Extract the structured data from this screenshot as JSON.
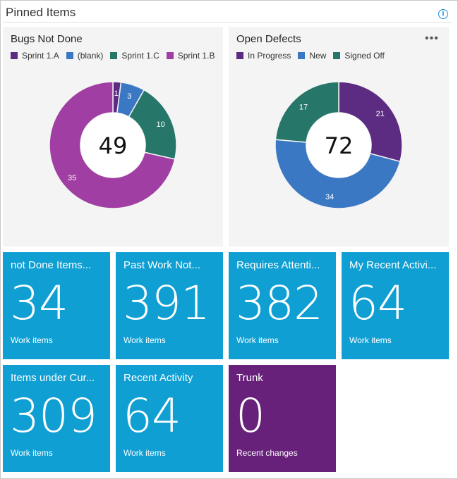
{
  "header": {
    "title": "Pinned Items",
    "info_icon": "info-icon"
  },
  "colors": {
    "tile_blue": "#0f9fd3",
    "tile_purple": "#68217a",
    "card_bg": "#f4f4f4"
  },
  "chart_data": [
    {
      "type": "pie",
      "title": "Bugs Not Done",
      "center_label": "49",
      "legend_placement": "top",
      "categories": [
        "Sprint 1.A",
        "(blank)",
        "Sprint 1.C",
        "Sprint 1.B"
      ],
      "values": [
        1,
        3,
        10,
        35
      ],
      "colors": [
        "#5b2c82",
        "#3b78c4",
        "#26776a",
        "#a03ea3"
      ],
      "slice_labels": [
        "1",
        "3",
        "10",
        "35"
      ]
    },
    {
      "type": "pie",
      "title": "Open Defects",
      "center_label": "72",
      "legend_placement": "top",
      "categories": [
        "In Progress",
        "New",
        "Signed Off"
      ],
      "values": [
        21,
        34,
        17
      ],
      "colors": [
        "#5b2c82",
        "#3b78c4",
        "#26776a"
      ],
      "slice_labels": [
        "21",
        "34",
        "17"
      ],
      "menu_icon": "more-horizontal-icon"
    }
  ],
  "tiles": [
    {
      "title": "not Done Items...",
      "value": "34",
      "subtitle": "Work items",
      "color": "#0f9fd3"
    },
    {
      "title": "Past Work Not...",
      "value": "391",
      "subtitle": "Work items",
      "color": "#0f9fd3"
    },
    {
      "title": "Requires Attenti...",
      "value": "382",
      "subtitle": "Work items",
      "color": "#0f9fd3"
    },
    {
      "title": "My Recent Activi...",
      "value": "64",
      "subtitle": "Work items",
      "color": "#0f9fd3"
    },
    {
      "title": "Items under Cur...",
      "value": "309",
      "subtitle": "Work items",
      "color": "#0f9fd3"
    },
    {
      "title": "Recent Activity",
      "value": "64",
      "subtitle": "Work items",
      "color": "#0f9fd3"
    },
    {
      "title": "Trunk",
      "value": "0",
      "subtitle": "Recent changes",
      "color": "#68217a"
    }
  ]
}
